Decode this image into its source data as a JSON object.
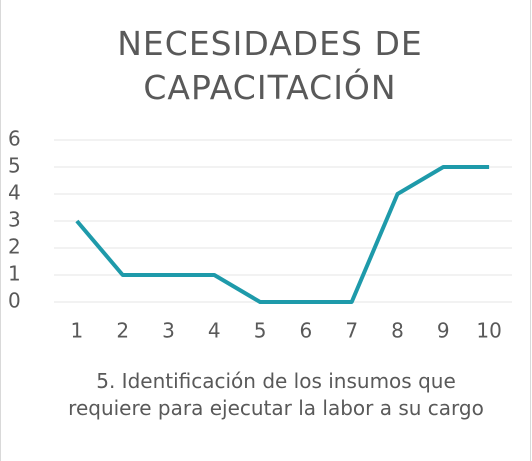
{
  "chart_data": {
    "type": "line",
    "title": "NECESIDADES DE CAPACITACIÓN",
    "x_label": "5. Identificación de los insumos que requiere para ejecutar la labor a su cargo",
    "categories": [
      "1",
      "2",
      "3",
      "4",
      "5",
      "6",
      "7",
      "8",
      "9",
      "10"
    ],
    "values": [
      3,
      1,
      1,
      1,
      0,
      0,
      0,
      4,
      5,
      5
    ],
    "color": "#1e9aaa",
    "ylim": [
      0,
      6
    ],
    "yticks": [
      0,
      1,
      2,
      3,
      4,
      5,
      6
    ],
    "grid": true
  }
}
